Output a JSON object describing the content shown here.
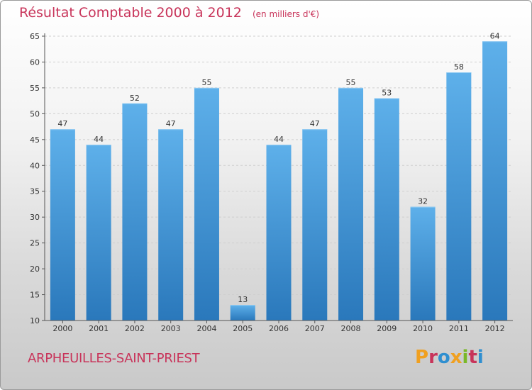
{
  "chart_data": {
    "type": "bar",
    "title": "Résultat Comptable 2000 à 2012",
    "unit": "(en milliers d'€)",
    "categories": [
      "2000",
      "2001",
      "2002",
      "2003",
      "2004",
      "2005",
      "2006",
      "2007",
      "2008",
      "2009",
      "2010",
      "2011",
      "2012"
    ],
    "values": [
      47,
      44,
      52,
      47,
      55,
      13,
      44,
      47,
      55,
      53,
      32,
      58,
      64
    ],
    "ylim": [
      10,
      65
    ],
    "yticks": [
      10,
      15,
      20,
      25,
      30,
      35,
      40,
      45,
      50,
      55,
      60,
      65
    ],
    "grid": true,
    "colors": {
      "bar_light": "#5eb0ea",
      "bar_dark": "#2a78bb",
      "grid": "#cfcfcf",
      "title": "#c8345a"
    }
  },
  "footer": {
    "place_name": "ARPHEUILLES-SAINT-PRIEST",
    "logo_text": "Proxiti",
    "logo_colors": [
      "#f0a020",
      "#c8345a",
      "#2f8fd0",
      "#f0a020",
      "#7ab828",
      "#c8345a",
      "#2f8fd0"
    ]
  }
}
